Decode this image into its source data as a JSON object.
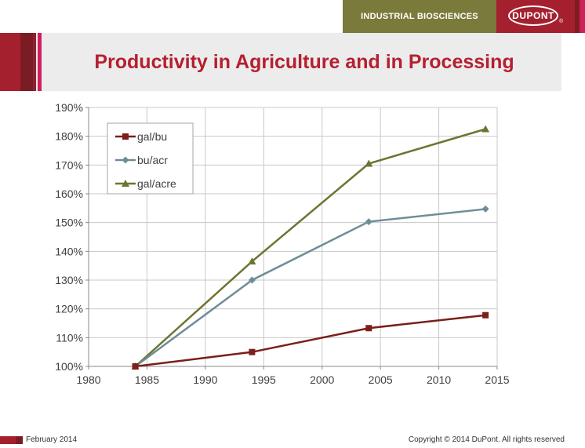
{
  "header": {
    "division": "INDUSTRIAL BIOSCIENCES",
    "logo_text": "DUPONT",
    "logo_reg": "®"
  },
  "slide": {
    "title": "Productivity in Agriculture and in Processing"
  },
  "footer": {
    "date": "February 2014",
    "copyright": "Copyright © 2014 DuPont.  All rights reserved"
  },
  "colors": {
    "brand_red": "#a4202f",
    "header_olive": "#7a7a3a",
    "gal_bu": "#7b1f1a",
    "bu_acr": "#6e8d97",
    "gal_acre": "#6e7432"
  },
  "chart_data": {
    "type": "line",
    "title": "",
    "xlabel": "",
    "ylabel": "",
    "xlim": [
      1980,
      2015
    ],
    "ylim": [
      100,
      190
    ],
    "x_ticks": [
      1980,
      1985,
      1990,
      1995,
      2000,
      2005,
      2010,
      2015
    ],
    "y_ticks": [
      100,
      110,
      120,
      130,
      140,
      150,
      160,
      170,
      180,
      190
    ],
    "y_tick_labels": [
      "100%",
      "110%",
      "120%",
      "130%",
      "140%",
      "150%",
      "160%",
      "170%",
      "180%",
      "190%"
    ],
    "grid": true,
    "legend_position": "top-left",
    "x": [
      1984,
      1994,
      2004,
      2014
    ],
    "series": [
      {
        "name": "gal/bu",
        "values": [
          100,
          105,
          113.3,
          117.8
        ],
        "marker": "square",
        "color": "#7b1f1a"
      },
      {
        "name": "bu/acr",
        "values": [
          100,
          130,
          150.3,
          154.7
        ],
        "marker": "diamond",
        "color": "#6e8d97"
      },
      {
        "name": "gal/acre",
        "values": [
          100,
          136.5,
          170.5,
          182.5
        ],
        "marker": "triangle",
        "color": "#6e7432"
      }
    ]
  }
}
